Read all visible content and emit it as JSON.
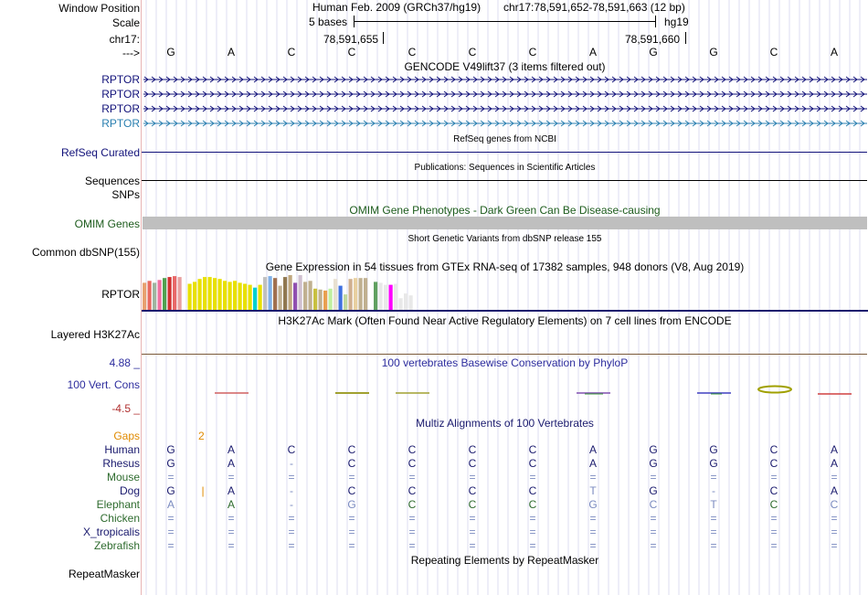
{
  "window_position": {
    "label": "Window Position",
    "assembly": "Human Feb. 2009 (GRCh37/hg19)",
    "position": "chr17:78,591,652-78,591,663 (12 bp)"
  },
  "scale": {
    "label": "Scale",
    "bases": "5 bases",
    "assembly": "hg19"
  },
  "chromosome": {
    "label": "chr17:",
    "coord_left": "78,591,655",
    "coord_right": "78,591,660"
  },
  "strand": {
    "label": "--->",
    "bases": [
      "G",
      "A",
      "C",
      "C",
      "C",
      "C",
      "C",
      "A",
      "G",
      "G",
      "C",
      "A"
    ]
  },
  "gencode": {
    "title": "GENCODE V49lift37 (3 items filtered out)",
    "items": [
      {
        "label": "RPTOR",
        "color": "#12127a"
      },
      {
        "label": "RPTOR",
        "color": "#12127a"
      },
      {
        "label": "RPTOR",
        "color": "#12127a"
      },
      {
        "label": "RPTOR",
        "color": "#2a7fb0"
      }
    ]
  },
  "refseq": {
    "title": "RefSeq genes from NCBI",
    "label": "RefSeq Curated"
  },
  "publications": {
    "title": "Publications: Sequences in Scientific Articles",
    "label": "Sequences"
  },
  "snps": {
    "label": "SNPs"
  },
  "omim": {
    "title": "OMIM Gene Phenotypes - Dark Green Can Be Disease-causing",
    "label": "OMIM Genes"
  },
  "dbsnp": {
    "title": "Short Genetic Variants from dbSNP release 155",
    "label": "Common dbSNP(155)"
  },
  "gtex": {
    "title": "Gene Expression in 54 tissues from GTEx RNA-seq of 17382 samples, 948 donors (V8, Aug 2019)",
    "label": "RPTOR"
  },
  "h3k27ac": {
    "title": "H3K27Ac Mark (Often Found Near Active Regulatory Elements) on 7 cell lines from ENCODE",
    "label": "Layered H3K27Ac"
  },
  "phylop": {
    "title": "100 vertebrates Basewise Conservation by PhyloP",
    "label": "100 Vert. Cons",
    "max": "4.88 _",
    "min": "-4.5 _"
  },
  "multiz": {
    "title": "Multiz Alignments of 100 Vertebrates",
    "gaps_label": "Gaps",
    "gap_count": "2",
    "species": [
      {
        "name": "Human",
        "color": "#1a1a6e",
        "bases": [
          "G",
          "A",
          "C",
          "C",
          "C",
          "C",
          "C",
          "A",
          "G",
          "G",
          "C",
          "A"
        ]
      },
      {
        "name": "Rhesus",
        "color": "#1a1a6e",
        "bases": [
          "G",
          "A",
          "-",
          "C",
          "C",
          "C",
          "C",
          "A",
          "G",
          "G",
          "C",
          "A"
        ]
      },
      {
        "name": "Mouse",
        "color": "#2e6b2e",
        "bases": [
          "=",
          "=",
          "=",
          "=",
          "=",
          "=",
          "=",
          "=",
          "=",
          "=",
          "=",
          "="
        ]
      },
      {
        "name": "Dog",
        "color": "#1a1a6e",
        "bases": [
          "G",
          "|",
          "A",
          "-",
          "C",
          "C",
          "C",
          "C",
          "T",
          "G",
          "-",
          "C",
          "A"
        ]
      },
      {
        "name": "Elephant",
        "color": "#2e6b2e",
        "bases": [
          "A",
          "A",
          "-",
          "G",
          "C",
          "C",
          "C",
          "G",
          "C",
          "T",
          "C",
          "C"
        ]
      },
      {
        "name": "Chicken",
        "color": "#2e6b2e",
        "bases": [
          "=",
          "=",
          "=",
          "=",
          "=",
          "=",
          "=",
          "=",
          "=",
          "=",
          "=",
          "="
        ]
      },
      {
        "name": "X_tropicalis",
        "color": "#1a1a6e",
        "bases": [
          "=",
          "=",
          "=",
          "=",
          "=",
          "=",
          "=",
          "=",
          "=",
          "=",
          "=",
          "="
        ]
      },
      {
        "name": "Zebrafish",
        "color": "#2e6b2e",
        "bases": [
          "=",
          "=",
          "=",
          "=",
          "=",
          "=",
          "=",
          "=",
          "=",
          "=",
          "=",
          "="
        ]
      }
    ]
  },
  "repeatmasker": {
    "title": "Repeating Elements by RepeatMasker",
    "label": "RepeatMasker"
  },
  "chart_data": {
    "type": "bar",
    "title": "Gene Expression in 54 tissues from GTEx RNA-seq of 17382 samples, 948 donors (V8, Aug 2019)",
    "ylim": [
      0,
      36
    ],
    "values": [
      28,
      30,
      28,
      31,
      33,
      34,
      35,
      34,
      0,
      27,
      29,
      32,
      34,
      34,
      33,
      32,
      30,
      29,
      30,
      28,
      27,
      26,
      23,
      26,
      34,
      35,
      33,
      25,
      34,
      36,
      28,
      36,
      29,
      30,
      22,
      21,
      20,
      22,
      32,
      25,
      16,
      32,
      33,
      33,
      33,
      33,
      29,
      28,
      26,
      26,
      27,
      12,
      17,
      15
    ],
    "colors": [
      "#e8a070",
      "#e86860",
      "#a0b4a0",
      "#f070a0",
      "#50a050",
      "#d03030",
      "#e86868",
      "#e8a0a0",
      "#ffffff",
      "#e8e000",
      "#e8e000",
      "#e8e000",
      "#e8e000",
      "#e8e000",
      "#e8e000",
      "#e8e000",
      "#e8e000",
      "#e8e000",
      "#e8e000",
      "#e8e000",
      "#e8e000",
      "#e8e000",
      "#00d0d0",
      "#e8e000",
      "#c0c0c0",
      "#80b0e8",
      "#a07050",
      "#c0b090",
      "#907850",
      "#c0a880",
      "#9050b0",
      "#d0c0d0",
      "#c0b090",
      "#c0b090",
      "#c8c040",
      "#c0b090",
      "#e8a050",
      "#c0f0a0",
      "#e8e0d0",
      "#4070e0",
      "#c0d8a0",
      "#d0b090",
      "#e8d0a0",
      "#c0b090",
      "#c0b090",
      "#ffffff",
      "#60a060",
      "#e8e8e8",
      "#e8e8e8",
      "#ff00ff",
      "#e8e8e8",
      "#e8e8e8",
      "#e8e8e8",
      "#e8e8e8"
    ]
  }
}
